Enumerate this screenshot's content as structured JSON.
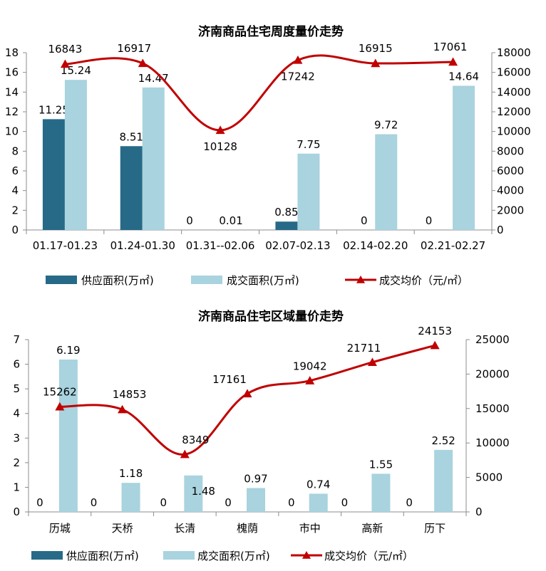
{
  "chart_data": [
    {
      "type": "bar+line",
      "title": "济南商品住宅周度量价走势",
      "categories": [
        "01.17-01.23",
        "01.24-01.30",
        "01.31--02.06",
        "02.07-02.13",
        "02.14-02.20",
        "02.21-02.27"
      ],
      "series": [
        {
          "name": "供应面积(万㎡)",
          "kind": "bar",
          "axis": "left",
          "color": "#276a88",
          "values": [
            11.25,
            8.51,
            0,
            0.85,
            0,
            0
          ],
          "labels": [
            "11.25",
            "8.51",
            "0",
            "0.85",
            "0",
            "0"
          ]
        },
        {
          "name": "成交面积(万㎡)",
          "kind": "bar",
          "axis": "left",
          "color": "#a9d3de",
          "values": [
            15.24,
            14.47,
            0.01,
            7.75,
            9.72,
            14.64
          ],
          "labels": [
            "15.24",
            "14.47",
            "0.01",
            "7.75",
            "9.72",
            "14.64"
          ]
        },
        {
          "name": "成交均价（元/㎡）",
          "kind": "line",
          "axis": "right",
          "color": "#c00000",
          "values": [
            16843,
            16917,
            10128,
            17242,
            16915,
            17061
          ],
          "labels": [
            "16843",
            "16917",
            "10128",
            "17242",
            "16915",
            "17061"
          ]
        }
      ],
      "y_left": {
        "min": 0,
        "max": 18,
        "ticks": [
          "0",
          "2",
          "4",
          "6",
          "8",
          "10",
          "12",
          "14",
          "16",
          "18"
        ]
      },
      "y_right": {
        "min": 0,
        "max": 18000,
        "ticks": [
          "0",
          "2000",
          "4000",
          "6000",
          "8000",
          "10000",
          "12000",
          "14000",
          "16000",
          "18000"
        ]
      },
      "grid": false,
      "legend": "bottom"
    },
    {
      "type": "bar+line",
      "title": "济南商品住宅区域量价走势",
      "categories": [
        "历城",
        "天桥",
        "长清",
        "槐荫",
        "市中",
        "高新",
        "历下"
      ],
      "series": [
        {
          "name": "供应面积(万㎡)",
          "kind": "bar",
          "axis": "left",
          "color": "#276a88",
          "values": [
            0,
            0,
            0,
            0,
            0,
            0,
            0
          ],
          "labels": [
            "0",
            "0",
            "0",
            "0",
            "0",
            "0",
            "0"
          ]
        },
        {
          "name": "成交面积(万㎡)",
          "kind": "bar",
          "axis": "left",
          "color": "#a9d3de",
          "values": [
            6.19,
            1.18,
            1.48,
            0.97,
            0.74,
            1.55,
            2.52
          ],
          "labels": [
            "6.19",
            "1.18",
            "1.48",
            "0.97",
            "0.74",
            "1.55",
            "2.52"
          ]
        },
        {
          "name": "成交均价（元/㎡）",
          "kind": "line",
          "axis": "right",
          "color": "#c00000",
          "values": [
            15262,
            14853,
            8349,
            17161,
            19042,
            21711,
            24153
          ],
          "labels": [
            "15262",
            "14853",
            "8349",
            "17161",
            "19042",
            "21711",
            "24153"
          ]
        }
      ],
      "y_left": {
        "min": 0,
        "max": 7,
        "ticks": [
          "0",
          "1",
          "2",
          "3",
          "4",
          "5",
          "6",
          "7"
        ]
      },
      "y_right": {
        "min": 0,
        "max": 25000,
        "ticks": [
          "0",
          "5000",
          "10000",
          "15000",
          "20000",
          "25000"
        ]
      },
      "grid": false,
      "legend": "bottom"
    }
  ]
}
